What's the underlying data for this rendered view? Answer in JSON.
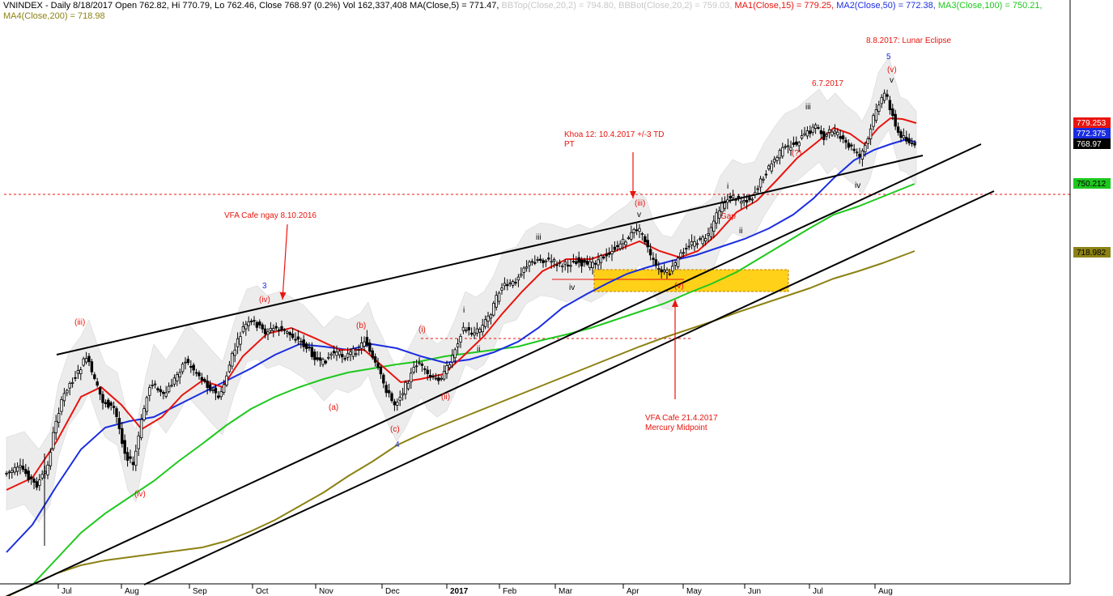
{
  "header": {
    "symbol_line": "VNINDEX - Daily 8/18/2017 Open 762.82, Hi 770.79, Lo 762.46, Close 768.97 (0.2%) Vol 162,337,408 MA(Close,5) = 771.47,",
    "bbtop": "BBTop(Close,20,2) = 794.80,",
    "bbbot": "BBBot(Close,20,2) = 759.03,",
    "ma1": "MA1(Close,15) = 779.25,",
    "ma2": "MA2(Close,50) = 772.38,",
    "ma3": "MA3(Close,100) = 750.21,",
    "ma4": "MA4(Close,200) = 718.98"
  },
  "colors": {
    "ma1": "#e8140e",
    "ma2": "#1a2de0",
    "ma3": "#1ec81e",
    "ma4": "#8c8214",
    "bands": "#ececec",
    "annotation": "#e8140e",
    "wave_blue": "#1a2de0",
    "zone": "#ffcc00"
  },
  "price_labels": [
    {
      "value": "779.253",
      "color": "#e8140e",
      "text_color": "#ffffff"
    },
    {
      "value": "772.375",
      "color": "#1a2de0",
      "text_color": "#ffffff"
    },
    {
      "value": "768.97",
      "color": "#000000",
      "text_color": "#ffffff"
    },
    {
      "value": "750.212",
      "color": "#1ec81e",
      "text_color": "#000000"
    },
    {
      "value": "718.982",
      "color": "#8c8214",
      "text_color": "#000000"
    }
  ],
  "chart_data": {
    "type": "candlestick",
    "x_ticks": [
      "Jul",
      "Aug",
      "Sep",
      "Oct",
      "Nov",
      "Dec",
      "2017",
      "Feb",
      "Mar",
      "Apr",
      "May",
      "Jun",
      "Jul",
      "Aug"
    ],
    "price_levels": [
      {
        "name": "779.253",
        "value": 779.253
      },
      {
        "name": "772.375",
        "value": 772.375
      },
      {
        "name": "768.97",
        "value": 768.97
      },
      {
        "name": "750.212",
        "value": 750.212
      },
      {
        "name": "718.982",
        "value": 718.982
      }
    ],
    "annotations": {
      "red": [
        "8.8.2017: Lunar Eclipse",
        "6.7.2017",
        "Khoa 12: 10.4.2017 +/-3 TD",
        "PT",
        "VFA Cafe ngay 8.10.2016",
        "VFA Cafe 21.4.2017",
        "Mercury Midpoint",
        "(v)",
        "(iii)",
        "(iv)",
        "(b)",
        "(a)",
        "(c)",
        "(i)",
        "(ii)",
        "(iii)",
        "(iv)",
        "(v)",
        "Gap",
        "(?)"
      ],
      "black": [
        "v",
        "iii",
        "iv",
        "i",
        "ii",
        "v",
        "iii",
        "iv",
        "i",
        "ii"
      ],
      "blue": [
        "5",
        "3",
        "4"
      ]
    }
  }
}
